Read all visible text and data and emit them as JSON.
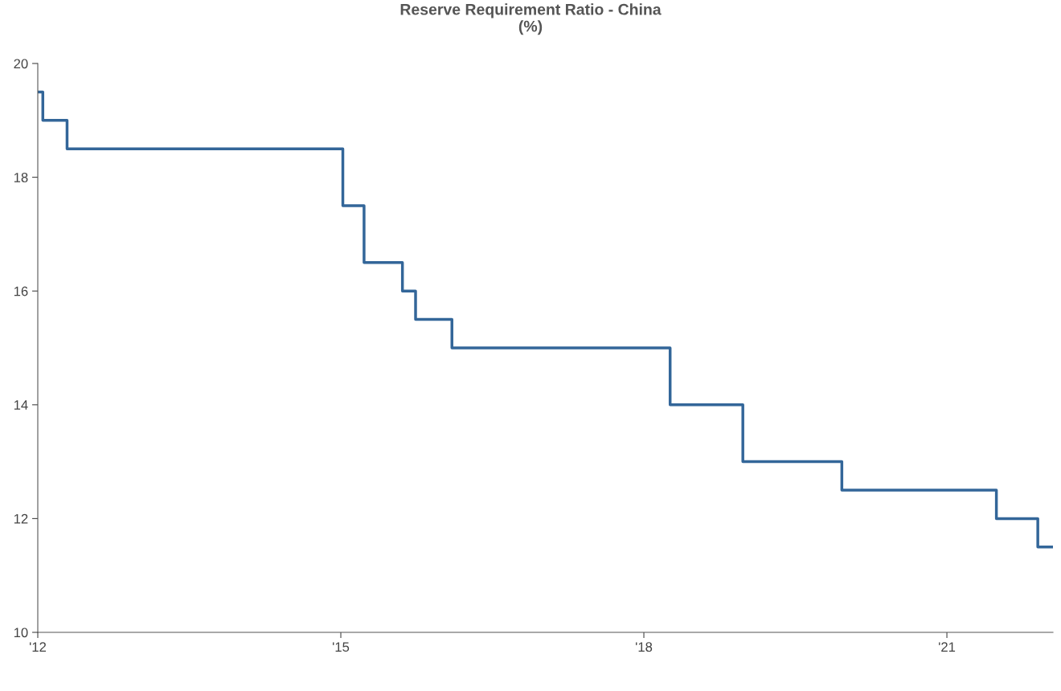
{
  "chart_data": {
    "type": "step",
    "title": "Reserve Requirement Ratio - China\n(%)",
    "x": [
      2012.0,
      2012.05,
      2012.29,
      2015.02,
      2015.23,
      2015.61,
      2015.74,
      2016.1,
      2018.26,
      2018.98,
      2019.96,
      2021.49,
      2021.9,
      2022.05
    ],
    "series": [
      {
        "color": "#336699",
        "values": [
          19.5,
          19.0,
          18.5,
          17.5,
          16.5,
          16.0,
          15.5,
          15.0,
          14.0,
          13.0,
          12.5,
          12.0,
          11.5,
          11.5
        ]
      }
    ],
    "xlim": [
      2012.0,
      2022.05
    ],
    "xticks": [
      {
        "value": 2012,
        "label": "'12"
      },
      {
        "value": 2015,
        "label": "'15"
      },
      {
        "value": 2018,
        "label": "'18"
      },
      {
        "value": 2021,
        "label": "'21"
      }
    ],
    "ylim": [
      10,
      20
    ],
    "yticks": [
      10,
      12,
      14,
      16,
      18,
      20
    ],
    "grid": false,
    "legend": false,
    "marker": "none",
    "line_style": "solid"
  }
}
